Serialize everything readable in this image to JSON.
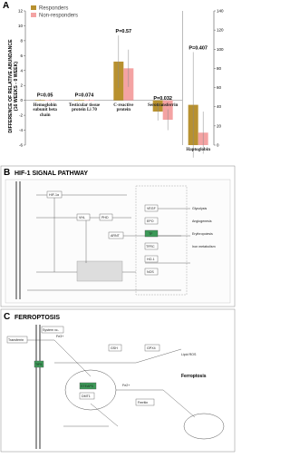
{
  "chart_data": {
    "type": "bar",
    "panel": "A",
    "ylabel": "DIFFERENCE OF RELATIVE ABUNDANCE",
    "ylabel2": "(16 WEEKS - 0 WEEK)",
    "categories": [
      "Hemoglobin subunit beta chain",
      "Testicular tissue protein Li 70",
      "C-reactive protein",
      "Serotransferrin",
      "Haptoglobin"
    ],
    "axis_by_category": [
      "y",
      "y",
      "y",
      "y",
      "y2"
    ],
    "p_values": [
      "P=0.05",
      "P=0.074",
      "P=0.57",
      "P=0.032",
      "P=0.407"
    ],
    "series": [
      {
        "name": "Responders",
        "color": "#b8912f",
        "values": [
          0.05,
          0.05,
          5.2,
          -1.5,
          42
        ],
        "errors": [
          0.1,
          0.1,
          3.5,
          1.2,
          55
        ]
      },
      {
        "name": "Non-responders",
        "color": "#f4a3a3",
        "values": [
          0.03,
          0.04,
          4.3,
          -2.6,
          13
        ],
        "errors": [
          0.1,
          0.1,
          2.5,
          1.4,
          22
        ]
      }
    ],
    "ylim": [
      -6,
      12
    ],
    "yticks": [
      -6,
      -4,
      -2,
      0,
      2,
      4,
      6,
      8,
      10,
      12
    ],
    "y2lim": [
      0,
      140
    ],
    "y2ticks": [
      0,
      20,
      40,
      60,
      80,
      100,
      120,
      140
    ],
    "legend": "upper-left"
  },
  "panel_b": {
    "label": "B",
    "title": "HIF-1  SIGNAL PATHWAY",
    "nodes": [
      "HIF-1α",
      "VHL",
      "PHD",
      "ARNT",
      "VEGF",
      "EPO",
      "TF",
      "TFRC",
      "HO-1",
      "NOS",
      "Glycolysis",
      "Angiogenesis",
      "Erythropoiesis",
      "Iron metabolism"
    ]
  },
  "panel_c": {
    "label": "C",
    "title": "FERROPTOSIS",
    "nodes": [
      "Transferrin",
      "TfR1",
      "Fe3+",
      "Fe2+",
      "STEAP3",
      "DMT1",
      "Ferritin",
      "GSH",
      "GPX4",
      "System xc-",
      "Lipid ROS",
      "Ferroptosis"
    ]
  }
}
